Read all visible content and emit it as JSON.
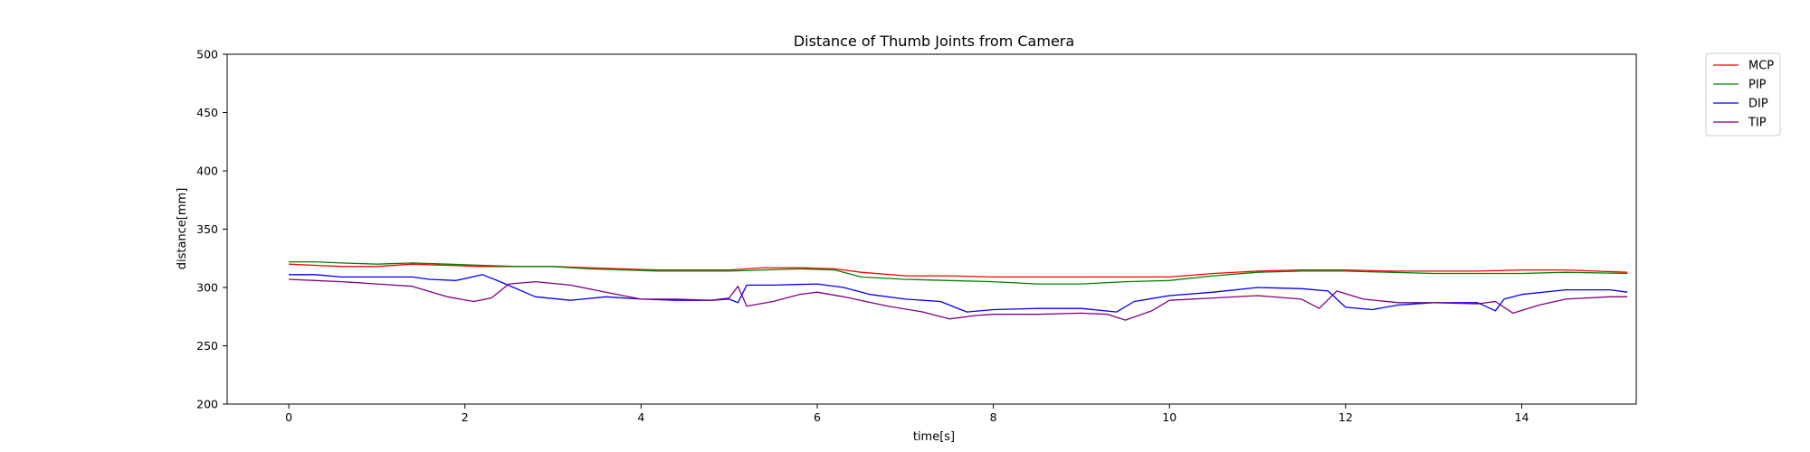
{
  "chart_data": {
    "type": "line",
    "title": "Distance of Thumb Joints from Camera",
    "xlabel": "time[s]",
    "ylabel": "distance[mm]",
    "xlim": [
      -0.7,
      15.3
    ],
    "ylim": [
      200,
      500
    ],
    "xticks": [
      0,
      2,
      4,
      6,
      8,
      10,
      12,
      14
    ],
    "yticks": [
      200,
      250,
      300,
      350,
      400,
      450,
      500
    ],
    "grid": false,
    "legend_position": "outside-top-right",
    "series": [
      {
        "name": "MCP",
        "color": "#ff0000",
        "points": [
          [
            0,
            320
          ],
          [
            0.3,
            319
          ],
          [
            0.6,
            318
          ],
          [
            1.0,
            318
          ],
          [
            1.4,
            320
          ],
          [
            1.8,
            319
          ],
          [
            2.2,
            318
          ],
          [
            2.6,
            318
          ],
          [
            3.0,
            318
          ],
          [
            3.4,
            317
          ],
          [
            3.8,
            316
          ],
          [
            4.2,
            315
          ],
          [
            4.6,
            315
          ],
          [
            5.0,
            315
          ],
          [
            5.4,
            317
          ],
          [
            5.8,
            317
          ],
          [
            6.2,
            316
          ],
          [
            6.5,
            313
          ],
          [
            7.0,
            310
          ],
          [
            7.5,
            310
          ],
          [
            8.0,
            309
          ],
          [
            8.5,
            309
          ],
          [
            9.0,
            309
          ],
          [
            9.5,
            309
          ],
          [
            10.0,
            309
          ],
          [
            10.5,
            312
          ],
          [
            11.0,
            314
          ],
          [
            11.5,
            315
          ],
          [
            12.0,
            315
          ],
          [
            12.5,
            314
          ],
          [
            13.0,
            314
          ],
          [
            13.5,
            314
          ],
          [
            14.0,
            315
          ],
          [
            14.5,
            315
          ],
          [
            15.2,
            313
          ]
        ]
      },
      {
        "name": "PIP",
        "color": "#008000",
        "points": [
          [
            0,
            322
          ],
          [
            0.3,
            322
          ],
          [
            0.6,
            321
          ],
          [
            1.0,
            320
          ],
          [
            1.4,
            321
          ],
          [
            1.8,
            320
          ],
          [
            2.2,
            319
          ],
          [
            2.6,
            318
          ],
          [
            3.0,
            318
          ],
          [
            3.4,
            316
          ],
          [
            3.8,
            315
          ],
          [
            4.2,
            314
          ],
          [
            4.6,
            314
          ],
          [
            5.0,
            314
          ],
          [
            5.4,
            315
          ],
          [
            5.8,
            316
          ],
          [
            6.2,
            315
          ],
          [
            6.5,
            309
          ],
          [
            7.0,
            307
          ],
          [
            7.5,
            306
          ],
          [
            8.0,
            305
          ],
          [
            8.5,
            303
          ],
          [
            9.0,
            303
          ],
          [
            9.5,
            305
          ],
          [
            10.0,
            306
          ],
          [
            10.5,
            310
          ],
          [
            11.0,
            313
          ],
          [
            11.5,
            314
          ],
          [
            12.0,
            314
          ],
          [
            12.5,
            313
          ],
          [
            13.0,
            312
          ],
          [
            13.5,
            312
          ],
          [
            14.0,
            312
          ],
          [
            14.5,
            313
          ],
          [
            15.2,
            312
          ]
        ]
      },
      {
        "name": "DIP",
        "color": "#0000ff",
        "points": [
          [
            0,
            311
          ],
          [
            0.3,
            311
          ],
          [
            0.6,
            309
          ],
          [
            1.0,
            309
          ],
          [
            1.4,
            309
          ],
          [
            1.6,
            307
          ],
          [
            1.9,
            306
          ],
          [
            2.2,
            311
          ],
          [
            2.4,
            305
          ],
          [
            2.8,
            292
          ],
          [
            3.2,
            289
          ],
          [
            3.6,
            292
          ],
          [
            4.0,
            290
          ],
          [
            4.4,
            289
          ],
          [
            4.8,
            289
          ],
          [
            5.0,
            290
          ],
          [
            5.1,
            287
          ],
          [
            5.2,
            302
          ],
          [
            5.5,
            302
          ],
          [
            6.0,
            303
          ],
          [
            6.3,
            300
          ],
          [
            6.6,
            294
          ],
          [
            7.0,
            290
          ],
          [
            7.4,
            288
          ],
          [
            7.7,
            279
          ],
          [
            8.0,
            281
          ],
          [
            8.5,
            282
          ],
          [
            9.0,
            282
          ],
          [
            9.4,
            279
          ],
          [
            9.6,
            288
          ],
          [
            10.0,
            293
          ],
          [
            10.5,
            296
          ],
          [
            11.0,
            300
          ],
          [
            11.5,
            299
          ],
          [
            11.8,
            297
          ],
          [
            12.0,
            283
          ],
          [
            12.3,
            281
          ],
          [
            12.6,
            285
          ],
          [
            13.0,
            287
          ],
          [
            13.5,
            287
          ],
          [
            13.7,
            280
          ],
          [
            13.8,
            290
          ],
          [
            14.0,
            294
          ],
          [
            14.5,
            298
          ],
          [
            15.0,
            298
          ],
          [
            15.2,
            296
          ]
        ]
      },
      {
        "name": "TIP",
        "color": "#800080",
        "points": [
          [
            0,
            307
          ],
          [
            0.3,
            306
          ],
          [
            0.6,
            305
          ],
          [
            1.0,
            303
          ],
          [
            1.4,
            301
          ],
          [
            1.8,
            292
          ],
          [
            2.1,
            288
          ],
          [
            2.3,
            291
          ],
          [
            2.5,
            303
          ],
          [
            2.8,
            305
          ],
          [
            3.2,
            302
          ],
          [
            3.6,
            296
          ],
          [
            4.0,
            290
          ],
          [
            4.4,
            290
          ],
          [
            4.8,
            289
          ],
          [
            5.0,
            291
          ],
          [
            5.1,
            301
          ],
          [
            5.2,
            284
          ],
          [
            5.5,
            288
          ],
          [
            5.8,
            294
          ],
          [
            6.0,
            296
          ],
          [
            6.3,
            292
          ],
          [
            6.8,
            284
          ],
          [
            7.2,
            279
          ],
          [
            7.5,
            273
          ],
          [
            7.8,
            276
          ],
          [
            8.0,
            277
          ],
          [
            8.5,
            277
          ],
          [
            9.0,
            278
          ],
          [
            9.3,
            277
          ],
          [
            9.5,
            272
          ],
          [
            9.8,
            280
          ],
          [
            10.0,
            289
          ],
          [
            10.5,
            291
          ],
          [
            11.0,
            293
          ],
          [
            11.5,
            290
          ],
          [
            11.7,
            282
          ],
          [
            11.9,
            297
          ],
          [
            12.2,
            290
          ],
          [
            12.6,
            287
          ],
          [
            13.0,
            287
          ],
          [
            13.5,
            286
          ],
          [
            13.7,
            288
          ],
          [
            13.9,
            278
          ],
          [
            14.2,
            285
          ],
          [
            14.5,
            290
          ],
          [
            15.0,
            292
          ],
          [
            15.2,
            292
          ]
        ]
      }
    ]
  }
}
